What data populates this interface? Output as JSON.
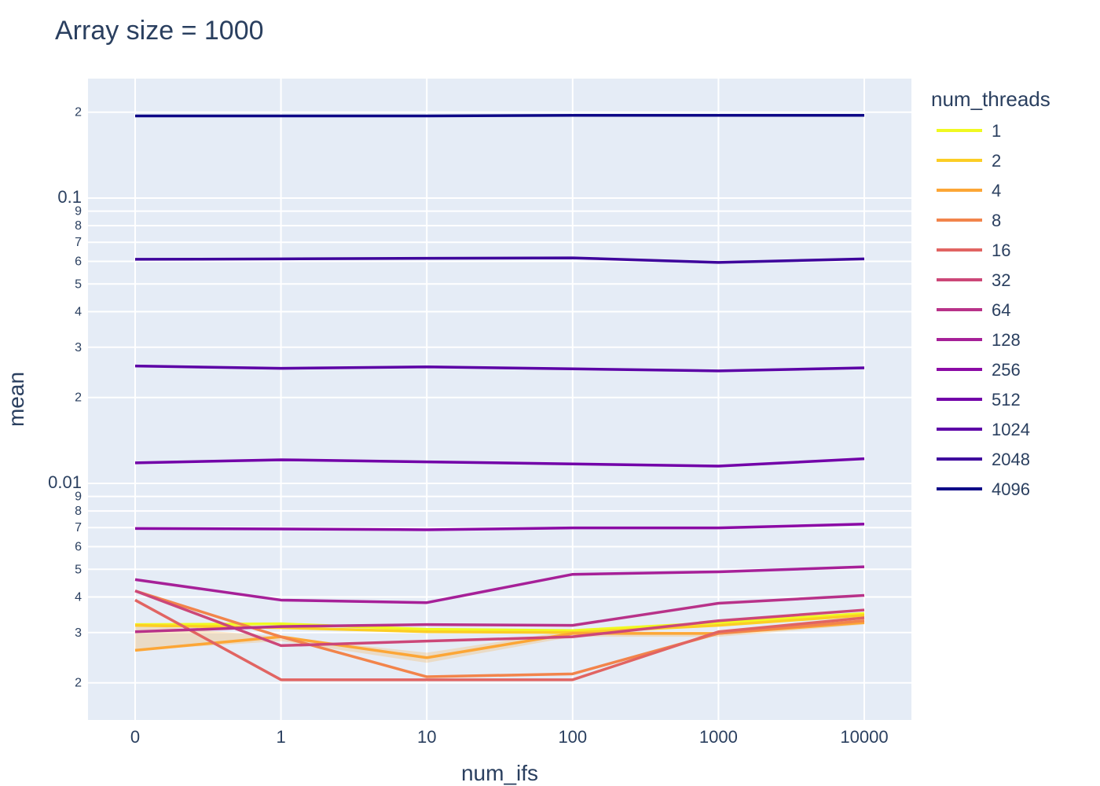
{
  "chart_data": {
    "type": "line",
    "title": "Array size = 1000",
    "xlabel": "num_ifs",
    "ylabel": "mean",
    "y_scale": "log",
    "ylim": [
      0.0015,
      0.3
    ],
    "x": [
      "0",
      "1",
      "10",
      "100",
      "1000",
      "10000"
    ],
    "y_major_ticks": [
      {
        "value": 0.01,
        "label": "0.01"
      },
      {
        "value": 0.1,
        "label": "0.1"
      }
    ],
    "y_minor_ticks": [
      {
        "value": 0.002,
        "label": "2"
      },
      {
        "value": 0.003,
        "label": "3"
      },
      {
        "value": 0.004,
        "label": "4"
      },
      {
        "value": 0.005,
        "label": "5"
      },
      {
        "value": 0.006,
        "label": "6"
      },
      {
        "value": 0.007,
        "label": "7"
      },
      {
        "value": 0.008,
        "label": "8"
      },
      {
        "value": 0.009,
        "label": "9"
      },
      {
        "value": 0.02,
        "label": "2"
      },
      {
        "value": 0.03,
        "label": "3"
      },
      {
        "value": 0.04,
        "label": "4"
      },
      {
        "value": 0.05,
        "label": "5"
      },
      {
        "value": 0.06,
        "label": "6"
      },
      {
        "value": 0.07,
        "label": "7"
      },
      {
        "value": 0.08,
        "label": "8"
      },
      {
        "value": 0.09,
        "label": "9"
      },
      {
        "value": 0.2,
        "label": "2"
      }
    ],
    "grid": true,
    "legend": {
      "title": "num_threads",
      "position": "right"
    },
    "band": {
      "series": "4",
      "upper": [
        0.0032,
        0.0029,
        0.00255,
        0.00305,
        0.003,
        0.0033
      ],
      "lower": [
        0.0026,
        0.0028,
        0.00235,
        0.0029,
        0.0029,
        0.0032
      ]
    },
    "series": [
      {
        "name": "1",
        "color": "#f0f921",
        "values": [
          0.0032,
          0.00322,
          0.00308,
          0.00305,
          0.00325,
          0.0035
        ]
      },
      {
        "name": "2",
        "color": "#fcce25",
        "values": [
          0.00318,
          0.00312,
          0.00302,
          0.003,
          0.00318,
          0.00345
        ]
      },
      {
        "name": "4",
        "color": "#fca636",
        "values": [
          0.0026,
          0.0029,
          0.00245,
          0.00298,
          0.00298,
          0.00325
        ]
      },
      {
        "name": "8",
        "color": "#f2844b",
        "values": [
          0.0042,
          0.0029,
          0.0021,
          0.00215,
          0.00298,
          0.0033
        ]
      },
      {
        "name": "16",
        "color": "#e16462",
        "values": [
          0.0039,
          0.00205,
          0.00205,
          0.00205,
          0.00302,
          0.00338
        ]
      },
      {
        "name": "32",
        "color": "#cc4778",
        "values": [
          0.0042,
          0.0027,
          0.0028,
          0.0029,
          0.0033,
          0.0036
        ]
      },
      {
        "name": "64",
        "color": "#b83289",
        "values": [
          0.00302,
          0.00315,
          0.0032,
          0.00318,
          0.0038,
          0.00405
        ]
      },
      {
        "name": "128",
        "color": "#a62098",
        "values": [
          0.0046,
          0.0039,
          0.00382,
          0.0048,
          0.0049,
          0.0051
        ]
      },
      {
        "name": "256",
        "color": "#8b0aa5",
        "values": [
          0.00695,
          0.00692,
          0.00688,
          0.00698,
          0.00698,
          0.0072
        ]
      },
      {
        "name": "512",
        "color": "#7201a8",
        "values": [
          0.0118,
          0.0121,
          0.0119,
          0.0117,
          0.0115,
          0.0122
        ]
      },
      {
        "name": "1024",
        "color": "#5c01a6",
        "values": [
          0.0258,
          0.0253,
          0.0256,
          0.0252,
          0.0248,
          0.0254
        ]
      },
      {
        "name": "2048",
        "color": "#3e049c",
        "values": [
          0.061,
          0.0612,
          0.0615,
          0.0617,
          0.0595,
          0.0612
        ]
      },
      {
        "name": "4096",
        "color": "#0d0887",
        "values": [
          0.194,
          0.194,
          0.194,
          0.195,
          0.195,
          0.195
        ]
      }
    ]
  }
}
